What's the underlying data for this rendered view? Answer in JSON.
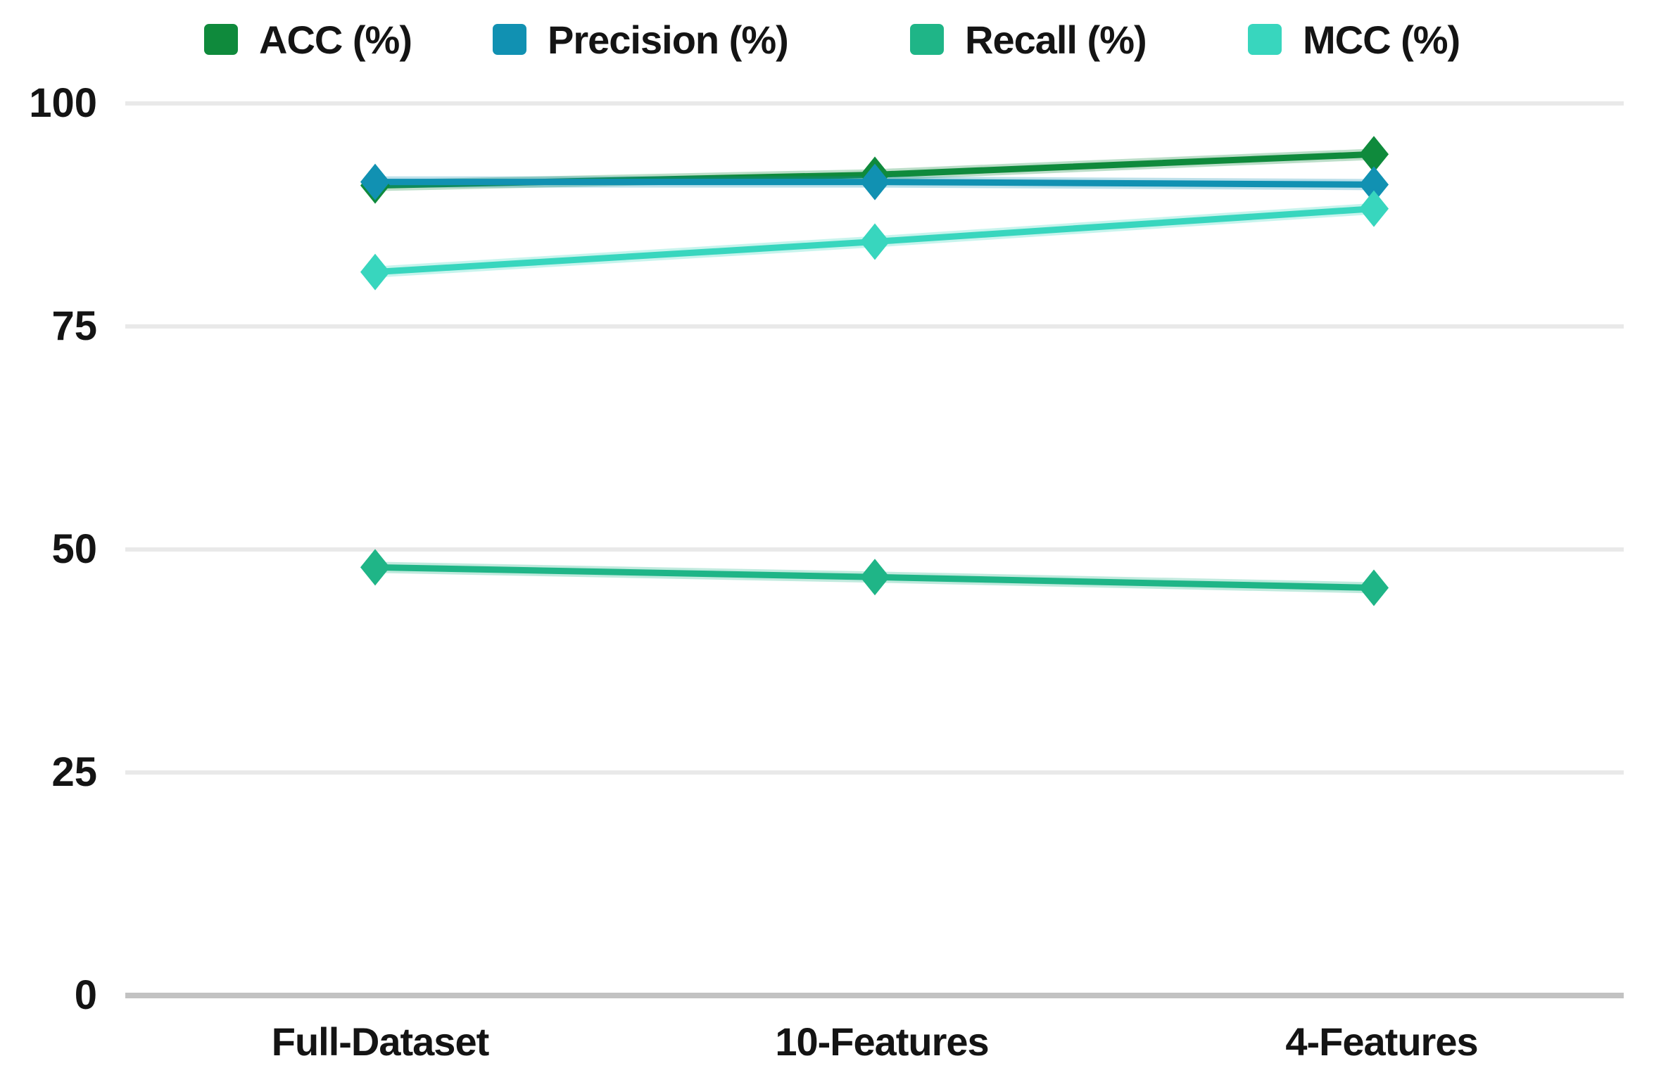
{
  "chart_data": {
    "type": "line",
    "title": "",
    "xlabel": "",
    "ylabel": "",
    "categories": [
      "Full-Dataset",
      "10-Features",
      "4-Features"
    ],
    "series": [
      {
        "name": "ACC (%)",
        "color": "#0f8a3c",
        "values": [
          90.8,
          92.0,
          94.3
        ]
      },
      {
        "name": "Precision (%)",
        "color": "#1191b2",
        "values": [
          91.2,
          91.2,
          90.9
        ]
      },
      {
        "name": "Recall (%)",
        "color": "#1fb587",
        "values": [
          48.0,
          46.9,
          45.7
        ]
      },
      {
        "name": "MCC (%)",
        "color": "#38d6be",
        "values": [
          81.1,
          84.5,
          88.2
        ]
      }
    ],
    "ylim": [
      0,
      100
    ],
    "y_ticks": [
      "100",
      "75",
      "50",
      "25",
      "0"
    ],
    "grid": "horizontal",
    "grid_color": "#e9e9e9",
    "axis_line_color": "#c2c2c2",
    "legend_position": "top",
    "marker": "diamond",
    "text_color": "#141414"
  }
}
